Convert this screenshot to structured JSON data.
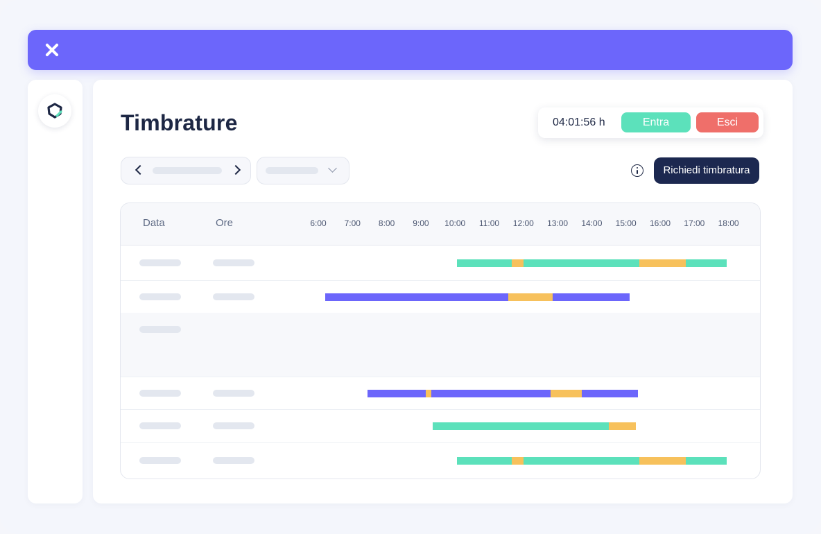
{
  "header": {
    "close_icon": "close-icon"
  },
  "sidebar": {
    "logo_icon": "app-logo-icon"
  },
  "page": {
    "title": "Timbrature"
  },
  "clock": {
    "time": "04:01:56 h",
    "enter_label": "Entra",
    "exit_label": "Esci",
    "colors": {
      "enter": "#5ce1bb",
      "exit": "#ef6f6a"
    }
  },
  "toolbar": {
    "request_label": "Richiedi timbratura",
    "info_icon": "info-icon",
    "prev_icon": "chevron-left-icon",
    "next_icon": "chevron-right-icon",
    "dropdown_icon": "chevron-down-icon"
  },
  "table": {
    "columns": {
      "date": "Data",
      "hours": "Ore"
    },
    "hours": [
      "6:00",
      "7:00",
      "8:00",
      "9:00",
      "10:00",
      "11:00",
      "12:00",
      "13:00",
      "14:00",
      "15:00",
      "16:00",
      "17:00",
      "18:00"
    ],
    "colors": {
      "work_green": "#5ce1bb",
      "work_purple": "#6c66fb",
      "break": "#f7c15c"
    },
    "rows": [
      {
        "placeholders": true,
        "segments": [
          {
            "start": 10.05,
            "end": 11.65,
            "kind": "green"
          },
          {
            "start": 11.65,
            "end": 12.0,
            "kind": "break"
          },
          {
            "start": 12.0,
            "end": 15.4,
            "kind": "green"
          },
          {
            "start": 15.4,
            "end": 16.75,
            "kind": "break"
          },
          {
            "start": 16.75,
            "end": 17.95,
            "kind": "green"
          }
        ]
      },
      {
        "placeholders": true,
        "segments": [
          {
            "start": 6.2,
            "end": 11.55,
            "kind": "purple"
          },
          {
            "start": 11.55,
            "end": 12.85,
            "kind": "break"
          },
          {
            "start": 12.85,
            "end": 15.1,
            "kind": "purple"
          }
        ]
      },
      {
        "placeholders": "date-only",
        "alt": true,
        "segments": []
      },
      {
        "placeholders": false,
        "alt": true,
        "segments": []
      },
      {
        "placeholders": true,
        "segments": [
          {
            "start": 7.45,
            "end": 9.15,
            "kind": "purple"
          },
          {
            "start": 9.15,
            "end": 9.3,
            "kind": "break"
          },
          {
            "start": 9.3,
            "end": 12.8,
            "kind": "purple"
          },
          {
            "start": 12.8,
            "end": 13.7,
            "kind": "break"
          },
          {
            "start": 13.7,
            "end": 15.35,
            "kind": "purple"
          }
        ]
      },
      {
        "placeholders": true,
        "segments": [
          {
            "start": 9.35,
            "end": 14.5,
            "kind": "green"
          },
          {
            "start": 14.5,
            "end": 15.3,
            "kind": "break"
          }
        ]
      },
      {
        "placeholders": true,
        "segments": [
          {
            "start": 10.05,
            "end": 11.65,
            "kind": "green"
          },
          {
            "start": 11.65,
            "end": 12.0,
            "kind": "break"
          },
          {
            "start": 12.0,
            "end": 15.4,
            "kind": "green"
          },
          {
            "start": 15.4,
            "end": 16.75,
            "kind": "break"
          },
          {
            "start": 16.75,
            "end": 17.95,
            "kind": "green"
          }
        ]
      }
    ]
  }
}
